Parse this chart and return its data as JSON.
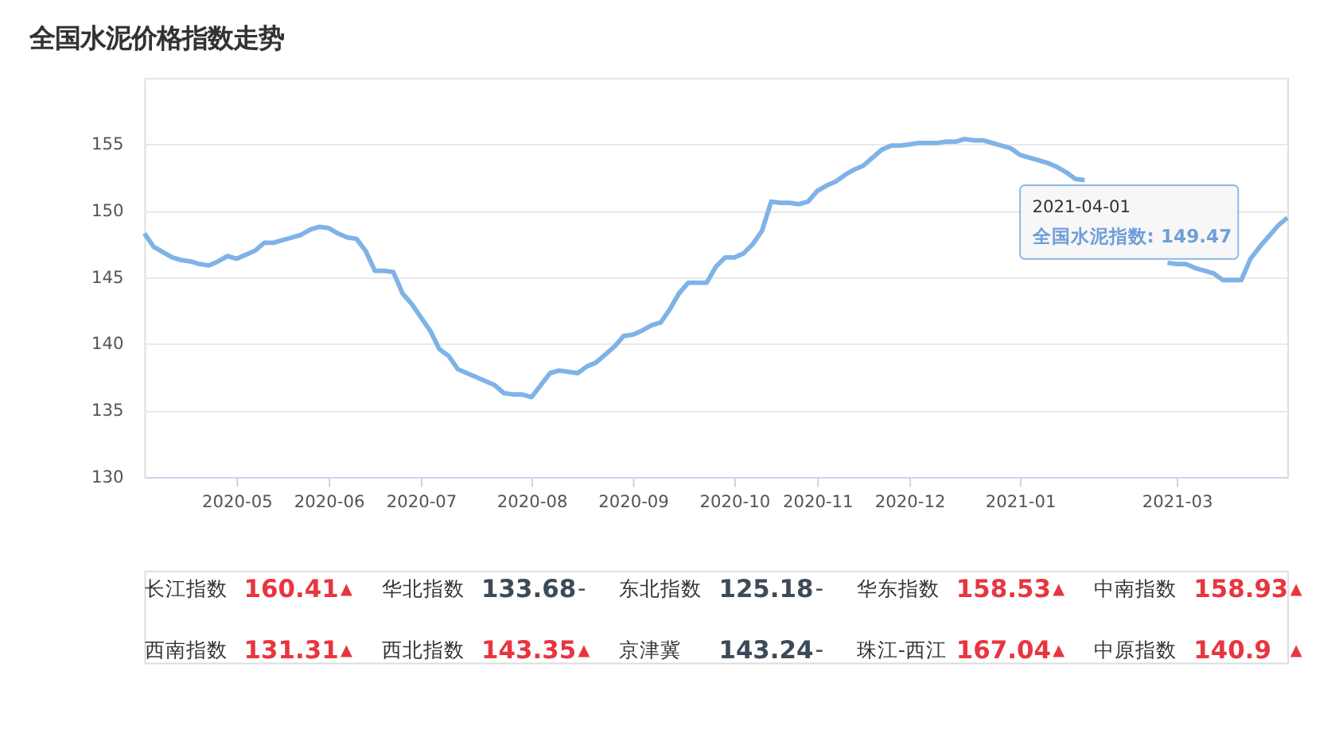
{
  "chart_data": [
    {
      "type": "line",
      "title": "全国水泥价格指数走势",
      "categories": [
        null,
        null,
        null,
        null,
        null,
        null,
        null,
        null,
        null,
        null,
        "2020-05",
        null,
        null,
        null,
        null,
        null,
        null,
        null,
        null,
        null,
        "2020-06",
        null,
        null,
        null,
        null,
        null,
        null,
        null,
        null,
        null,
        "2020-07",
        null,
        null,
        null,
        null,
        null,
        null,
        null,
        null,
        null,
        null,
        null,
        "2020-08",
        null,
        null,
        null,
        null,
        null,
        null,
        null,
        null,
        null,
        null,
        "2020-09",
        null,
        null,
        null,
        null,
        null,
        null,
        null,
        null,
        null,
        null,
        "2020-10",
        null,
        null,
        null,
        null,
        null,
        null,
        null,
        null,
        "2020-11",
        null,
        null,
        null,
        null,
        null,
        null,
        null,
        null,
        null,
        "2020-12",
        null,
        null,
        null,
        null,
        null,
        null,
        null,
        null,
        null,
        null,
        null,
        "2021-01",
        null,
        null,
        null,
        null,
        null,
        null,
        null,
        null,
        null,
        null,
        null,
        null,
        null,
        null,
        null,
        null,
        "2021-03",
        null,
        null,
        null,
        null,
        null,
        null,
        null,
        null,
        null,
        null,
        null,
        null
      ],
      "series": [
        {
          "color": "#7fb3e8",
          "values": [
            148.3,
            147.3,
            146.9,
            146.5,
            146.3,
            146.2,
            146.0,
            145.9,
            146.2,
            146.6,
            146.4,
            146.7,
            147.0,
            147.6,
            147.6,
            147.8,
            148.0,
            148.2,
            148.6,
            148.8,
            148.7,
            148.3,
            148.0,
            147.9,
            147.0,
            145.5,
            145.5,
            145.4,
            143.8,
            143.0,
            142.0,
            141.0,
            139.6,
            139.1,
            138.1,
            137.8,
            137.5,
            137.2,
            136.9,
            136.3,
            136.2,
            136.2,
            136.0,
            136.9,
            137.8,
            138.0,
            137.9,
            137.8,
            138.3,
            138.6,
            139.2,
            139.8,
            140.6,
            140.7,
            141.0,
            141.4,
            141.6,
            142.6,
            143.8,
            144.6,
            144.6,
            144.6,
            145.8,
            146.5,
            146.5,
            146.8,
            147.5,
            148.5,
            150.7,
            150.6,
            150.6,
            150.5,
            150.7,
            151.5,
            151.9,
            152.2,
            152.7,
            153.1,
            153.4,
            154.0,
            154.6,
            154.9,
            154.9,
            155.0,
            155.1,
            155.1,
            155.1,
            155.2,
            155.2,
            155.4,
            155.3,
            155.3,
            155.1,
            154.9,
            154.7,
            154.2,
            154.0,
            153.8,
            153.6,
            153.3,
            152.9,
            152.4,
            152.3,
            null,
            null,
            null,
            null,
            null,
            null,
            null,
            null,
            146.1,
            146.0,
            146.0,
            145.7,
            145.5,
            145.3,
            144.8,
            144.8,
            144.8,
            146.4,
            147.3,
            148.1,
            148.9,
            149.47
          ]
        }
      ],
      "ylim": [
        130,
        160
      ],
      "yticks": [
        130,
        135,
        140,
        145,
        150,
        155,
        {
          "value": 160,
          "label": null
        }
      ],
      "grid": "y",
      "line_style": "solid",
      "marker": "none",
      "annotations": [
        "2021-04-01",
        "全国水泥指数: 149.47"
      ]
    },
    {
      "type": "other",
      "annotations": [
        "长江指数",
        "160.41",
        "▲",
        "华北指数",
        "133.68",
        "–",
        "东北指数",
        "125.18",
        "–",
        "华东指数",
        "158.53",
        "▲",
        "中南指数",
        "158.93",
        "▲",
        "西南指数",
        "131.31",
        "▲",
        "西北指数",
        "143.35",
        "▲",
        "京津冀",
        "143.24",
        "–",
        "珠江-西江",
        "167.04",
        "▲",
        "中原指数",
        "140.9",
        "▲"
      ],
      "colors": [
        "#333333",
        "#e8353f",
        "#e8353f",
        "#333333",
        "#3d4a57",
        "#3d4a57",
        "#333333",
        "#3d4a57",
        "#3d4a57",
        "#333333",
        "#e8353f",
        "#e8353f",
        "#333333",
        "#e8353f",
        "#e8353f",
        "#333333",
        "#e8353f",
        "#e8353f",
        "#333333",
        "#e8353f",
        "#e8353f",
        "#333333",
        "#3d4a57",
        "#3d4a57",
        "#333333",
        "#e8353f",
        "#e8353f",
        "#333333",
        "#e8353f",
        "#e8353f"
      ]
    }
  ]
}
